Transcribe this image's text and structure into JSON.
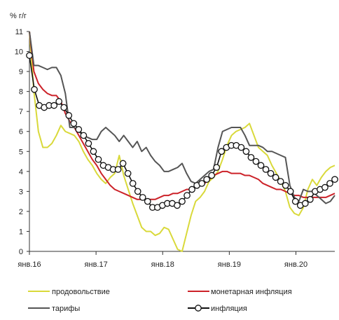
{
  "chart_data": {
    "type": "line",
    "unit_label": "% г/г",
    "ylim": [
      0,
      11
    ],
    "y_ticks": [
      "0",
      "1",
      "2",
      "3",
      "4",
      "5",
      "6",
      "7",
      "8",
      "9",
      "10",
      "11"
    ],
    "x_ticks": [
      "янв.16",
      "янв.17",
      "янв.18",
      "янв.19",
      "янв.20"
    ],
    "x_start": "2016-01",
    "x_step": "month",
    "grid": false,
    "legend_position": "bottom",
    "colors": {
      "food": "#d9d93a",
      "monetary": "#cc2229",
      "tariffs": "#555555",
      "inflation": "#111111"
    },
    "series": [
      {
        "name": "продовольствие",
        "key": "food",
        "values": [
          11.0,
          8.0,
          6.0,
          5.2,
          5.2,
          5.4,
          5.8,
          6.3,
          6.0,
          5.9,
          5.8,
          5.5,
          5.0,
          4.6,
          4.3,
          3.9,
          3.6,
          3.4,
          3.7,
          3.9,
          4.8,
          3.8,
          3.1,
          2.4,
          1.8,
          1.2,
          1.0,
          1.0,
          0.8,
          0.9,
          1.2,
          1.1,
          0.6,
          0.1,
          0.0,
          0.9,
          1.8,
          2.5,
          2.7,
          3.0,
          3.5,
          3.7,
          4.0,
          4.6,
          5.3,
          5.8,
          6.0,
          6.1,
          6.2,
          6.4,
          5.8,
          5.2,
          5.0,
          4.8,
          4.3,
          3.9,
          3.5,
          3.0,
          2.2,
          1.9,
          1.8,
          2.2,
          3.1,
          3.6,
          3.3,
          3.7,
          4.0,
          4.2,
          4.3
        ]
      },
      {
        "name": "монетарная инфляция",
        "key": "monetary",
        "values": [
          11.0,
          9.0,
          8.4,
          8.1,
          7.9,
          7.8,
          7.8,
          7.5,
          6.9,
          6.5,
          6.2,
          5.8,
          5.4,
          5.0,
          4.6,
          4.3,
          3.9,
          3.6,
          3.3,
          3.1,
          3.0,
          2.9,
          2.8,
          2.7,
          2.6,
          2.6,
          2.6,
          2.6,
          2.6,
          2.7,
          2.8,
          2.8,
          2.9,
          2.9,
          3.0,
          3.1,
          3.1,
          3.2,
          3.3,
          3.4,
          3.6,
          3.8,
          3.9,
          4.0,
          4.0,
          3.9,
          3.9,
          3.9,
          3.8,
          3.8,
          3.7,
          3.6,
          3.4,
          3.3,
          3.2,
          3.1,
          3.1,
          3.0,
          2.9,
          2.8,
          2.8,
          2.7,
          2.7,
          2.7,
          2.7,
          2.7,
          2.7,
          2.8,
          2.9
        ]
      },
      {
        "name": "тарифы",
        "key": "tariffs",
        "values": [
          11.0,
          9.3,
          9.3,
          9.2,
          9.1,
          9.2,
          9.2,
          8.8,
          7.9,
          6.2,
          6.2,
          6.0,
          5.8,
          5.7,
          5.6,
          5.6,
          6.0,
          6.2,
          6.0,
          5.8,
          5.5,
          5.8,
          5.5,
          5.2,
          5.5,
          5.0,
          5.2,
          4.8,
          4.5,
          4.3,
          4.0,
          4.0,
          4.1,
          4.2,
          4.4,
          3.9,
          3.5,
          3.4,
          3.6,
          3.8,
          4.0,
          4.1,
          5.2,
          6.0,
          6.1,
          6.2,
          6.2,
          6.2,
          5.8,
          5.3,
          5.3,
          5.3,
          5.2,
          5.0,
          5.0,
          4.9,
          4.8,
          4.7,
          3.3,
          2.7,
          2.5,
          3.1,
          3.0,
          3.0,
          2.8,
          2.6,
          2.4,
          2.5,
          2.8
        ]
      },
      {
        "name": "инфляция",
        "key": "inflation",
        "values": [
          9.8,
          8.1,
          7.3,
          7.2,
          7.3,
          7.3,
          7.5,
          7.2,
          6.8,
          6.4,
          6.1,
          5.8,
          5.4,
          5.0,
          4.6,
          4.3,
          4.2,
          4.1,
          4.1,
          4.4,
          3.9,
          3.4,
          3.0,
          2.7,
          2.5,
          2.2,
          2.2,
          2.3,
          2.4,
          2.4,
          2.3,
          2.5,
          2.8,
          3.1,
          3.3,
          3.4,
          3.6,
          3.8,
          4.2,
          5.0,
          5.2,
          5.3,
          5.3,
          5.2,
          5.0,
          4.7,
          4.5,
          4.3,
          4.1,
          3.9,
          3.7,
          3.5,
          3.3,
          3.0,
          2.5,
          2.3,
          2.4,
          2.6,
          3.0,
          3.1,
          3.2,
          3.4,
          3.6
        ]
      }
    ],
    "legend": [
      {
        "label": "продовольствие",
        "key": "food",
        "marker": false
      },
      {
        "label": "монетарная инфляция",
        "key": "monetary",
        "marker": false
      },
      {
        "label": "тарифы",
        "key": "tariffs",
        "marker": false
      },
      {
        "label": "инфляция",
        "key": "inflation",
        "marker": true
      }
    ]
  }
}
